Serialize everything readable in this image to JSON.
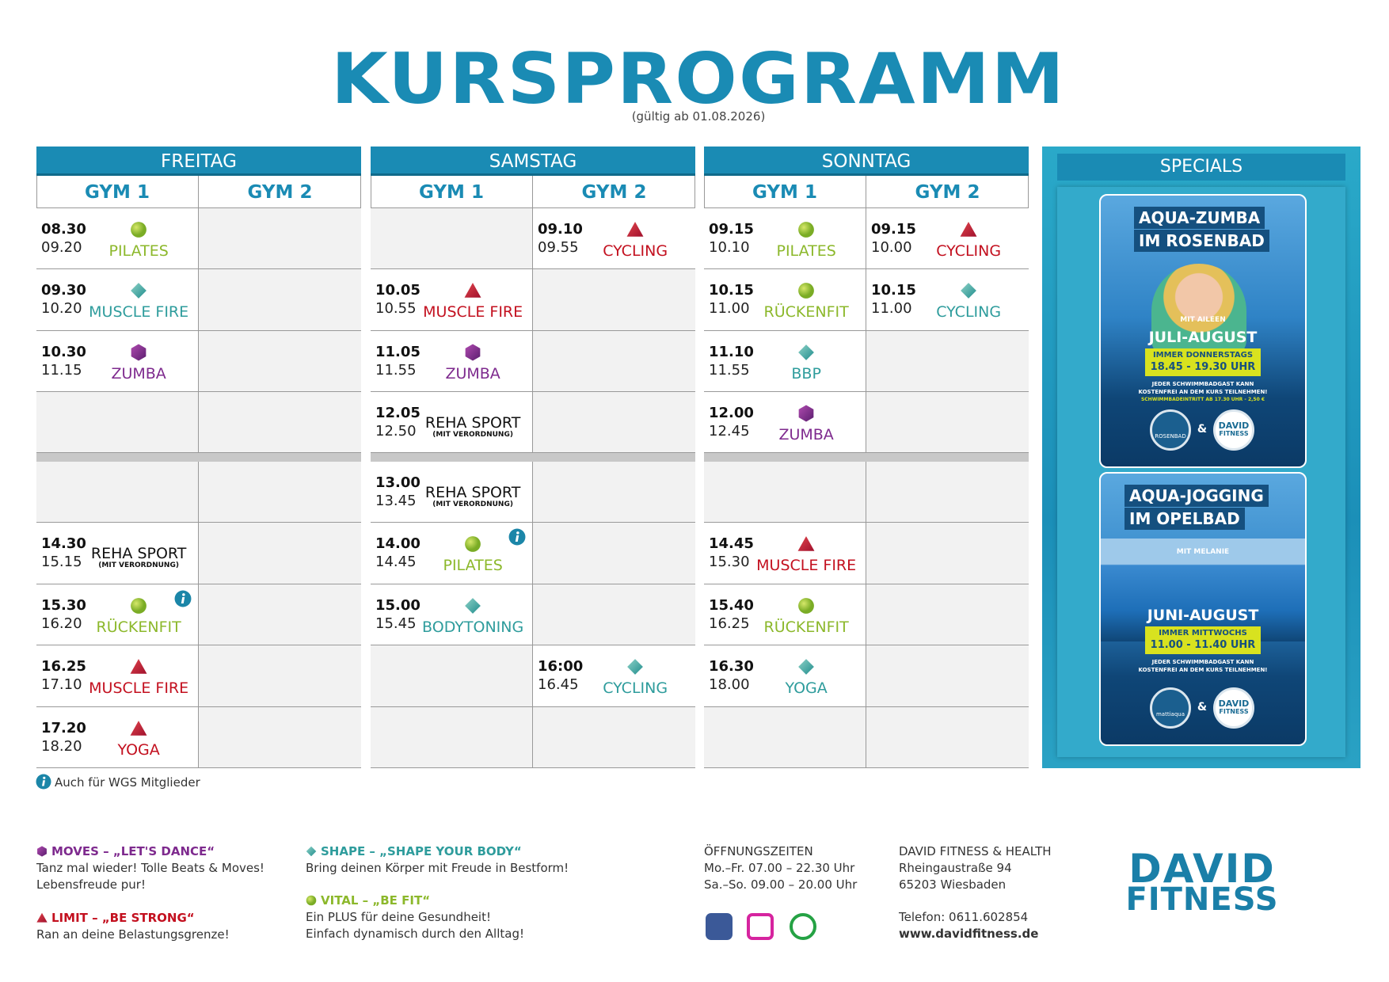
{
  "header": {
    "title": "KURSPROGRAMM",
    "subtitle": "(gültig ab 01.08.2026)"
  },
  "days": [
    {
      "name": "FREITAG",
      "gyms": [
        "GYM 1",
        "GYM 2"
      ],
      "slots": [
        [
          {
            "start": "08.30",
            "end": "09.20",
            "course": "PILATES",
            "icon": "circle",
            "color": "#8cb82b"
          },
          null
        ],
        [
          {
            "start": "09.30",
            "end": "10.20",
            "course": "MUSCLE FIRE",
            "icon": "diamond",
            "color": "#2e9c9c"
          },
          null
        ],
        [
          {
            "start": "10.30",
            "end": "11.15",
            "course": "ZUMBA",
            "icon": "hexagon",
            "color": "#7e2a8e"
          },
          null
        ],
        [
          null,
          null
        ],
        [
          null,
          null
        ],
        [
          {
            "start": "14.30",
            "end": "15.15",
            "course": "REHA SPORT",
            "note": "(MIT VERORDNUNG)",
            "color": "#111111"
          },
          null
        ],
        [
          {
            "start": "15.30",
            "end": "16.20",
            "course": "RÜCKENFIT",
            "icon": "circle",
            "color": "#8cb82b",
            "info": true
          },
          null
        ],
        [
          {
            "start": "16.25",
            "end": "17.10",
            "course": "MUSCLE FIRE",
            "icon": "triangle",
            "color": "#c3101f"
          },
          null
        ],
        [
          {
            "start": "17.20",
            "end": "18.20",
            "course": "YOGA",
            "icon": "triangle",
            "color": "#c3101f"
          },
          null
        ]
      ]
    },
    {
      "name": "SAMSTAG",
      "gyms": [
        "GYM 1",
        "GYM 2"
      ],
      "slots": [
        [
          null,
          {
            "start": "09.10",
            "end": "09.55",
            "course": "CYCLING",
            "icon": "triangle",
            "color": "#c3101f"
          }
        ],
        [
          {
            "start": "10.05",
            "end": "10.55",
            "course": "MUSCLE FIRE",
            "icon": "triangle",
            "color": "#c3101f"
          },
          null
        ],
        [
          {
            "start": "11.05",
            "end": "11.55",
            "course": "ZUMBA",
            "icon": "hexagon",
            "color": "#7e2a8e"
          },
          null
        ],
        [
          {
            "start": "12.05",
            "end": "12.50",
            "course": "REHA SPORT",
            "note": "(MIT VERORDNUNG)",
            "color": "#111111"
          },
          null
        ],
        [
          {
            "start": "13.00",
            "end": "13.45",
            "course": "REHA SPORT",
            "note": "(MIT VERORDNUNG)",
            "color": "#111111"
          },
          null
        ],
        [
          {
            "start": "14.00",
            "end": "14.45",
            "course": "PILATES",
            "icon": "circle",
            "color": "#8cb82b",
            "info": true
          },
          null
        ],
        [
          {
            "start": "15.00",
            "end": "15.45",
            "course": "BODYTONING",
            "icon": "diamond",
            "color": "#2e9c9c"
          },
          null
        ],
        [
          null,
          {
            "start": "16:00",
            "end": "16.45",
            "course": "CYCLING",
            "icon": "diamond",
            "color": "#2e9c9c"
          }
        ],
        [
          null,
          null
        ]
      ]
    },
    {
      "name": "SONNTAG",
      "gyms": [
        "GYM 1",
        "GYM 2"
      ],
      "slots": [
        [
          {
            "start": "09.15",
            "end": "10.10",
            "course": "PILATES",
            "icon": "circle",
            "color": "#8cb82b"
          },
          {
            "start": "09.15",
            "end": "10.00",
            "course": "CYCLING",
            "icon": "triangle",
            "color": "#c3101f"
          }
        ],
        [
          {
            "start": "10.15",
            "end": "11.00",
            "course": "RÜCKENFIT",
            "icon": "circle",
            "color": "#8cb82b"
          },
          {
            "start": "10.15",
            "end": "11.00",
            "course": "CYCLING",
            "icon": "diamond",
            "color": "#2e9c9c"
          }
        ],
        [
          {
            "start": "11.10",
            "end": "11.55",
            "course": "BBP",
            "icon": "diamond",
            "color": "#2e9c9c"
          },
          null
        ],
        [
          {
            "start": "12.00",
            "end": "12.45",
            "course": "ZUMBA",
            "icon": "hexagon",
            "color": "#7e2a8e"
          },
          null
        ],
        [
          null,
          null
        ],
        [
          {
            "start": "14.45",
            "end": "15.30",
            "course": "MUSCLE FIRE",
            "icon": "triangle",
            "color": "#c3101f"
          },
          null
        ],
        [
          {
            "start": "15.40",
            "end": "16.25",
            "course": "RÜCKENFIT",
            "icon": "circle",
            "color": "#8cb82b"
          },
          null
        ],
        [
          {
            "start": "16.30",
            "end": "18.00",
            "course": "YOGA",
            "icon": "diamond",
            "color": "#2e9c9c"
          },
          null
        ],
        [
          null,
          null
        ]
      ]
    }
  ],
  "specials": {
    "title": "SPECIALS",
    "cards": [
      {
        "title": [
          "AQUA-ZUMBA",
          "IM ROSENBAD"
        ],
        "instructor": "MIT AILEEN",
        "season": "JULI-AUGUST",
        "day": "IMMER DONNERSTAGS",
        "time": "18.45 - 19.30 UHR",
        "notes": [
          "JEDER SCHWIMMBADGAST KANN",
          "KOSTENFREI AN DEM KURS TEILNEHMEN!"
        ],
        "extra": "SCHWIMMBADEINTRITT AB 17.30 UHR - 2,50 €",
        "partner": "ROSENBAD",
        "and": "&",
        "brand": [
          "DAVID",
          "FITNESS"
        ]
      },
      {
        "title": [
          "AQUA-JOGGING",
          "IM OPELBAD"
        ],
        "instructor": "MIT MELANIE",
        "season": "JUNI-AUGUST",
        "day": "IMMER MITTWOCHS",
        "time": "11.00 - 11.40 UHR",
        "notes": [
          "JEDER SCHWIMMBADGAST KANN",
          "KOSTENFREI AN DEM KURS TEILNEHMEN!"
        ],
        "partner": "mattiaqua",
        "and": "&",
        "brand": [
          "DAVID",
          "FITNESS"
        ]
      }
    ]
  },
  "footnote": "Auch für WGS Mitglieder",
  "legend": [
    {
      "title": "MOVES – „LET'S DANCE“",
      "lines": [
        "Tanz mal wieder! Tolle Beats & Moves!",
        "Lebensfreude pur!"
      ],
      "icon": "hexagon",
      "color": "#7e2a8e"
    },
    {
      "title": "LIMIT – „BE STRONG“",
      "lines": [
        "Ran an deine Belastungsgrenze!"
      ],
      "icon": "triangle",
      "color": "#c3101f"
    },
    {
      "title": "SHAPE – „SHAPE YOUR BODY“",
      "lines": [
        "Bring deinen Körper mit Freude in Bestform!"
      ],
      "icon": "diamond",
      "color": "#2e9c9c"
    },
    {
      "title": "VITAL – „BE FIT“",
      "lines": [
        "Ein PLUS für deine Gesundheit!",
        "Einfach dynamisch durch den Alltag!"
      ],
      "icon": "circle",
      "color": "#8cb82b"
    }
  ],
  "hours": {
    "title": "ÖFFNUNGSZEITEN",
    "lines": [
      "Mo.–Fr. 07.00 – 22.30 Uhr",
      "Sa.–So. 09.00 – 20.00 Uhr"
    ]
  },
  "contact": {
    "name": "DAVID FITNESS & HEALTH",
    "address": [
      "Rheingaustraße 94",
      "65203 Wiesbaden"
    ],
    "phone": "Telefon: 0611.602854",
    "web": "www.davidfitness.de"
  },
  "logo": [
    "DAVID",
    "FITNESS"
  ]
}
